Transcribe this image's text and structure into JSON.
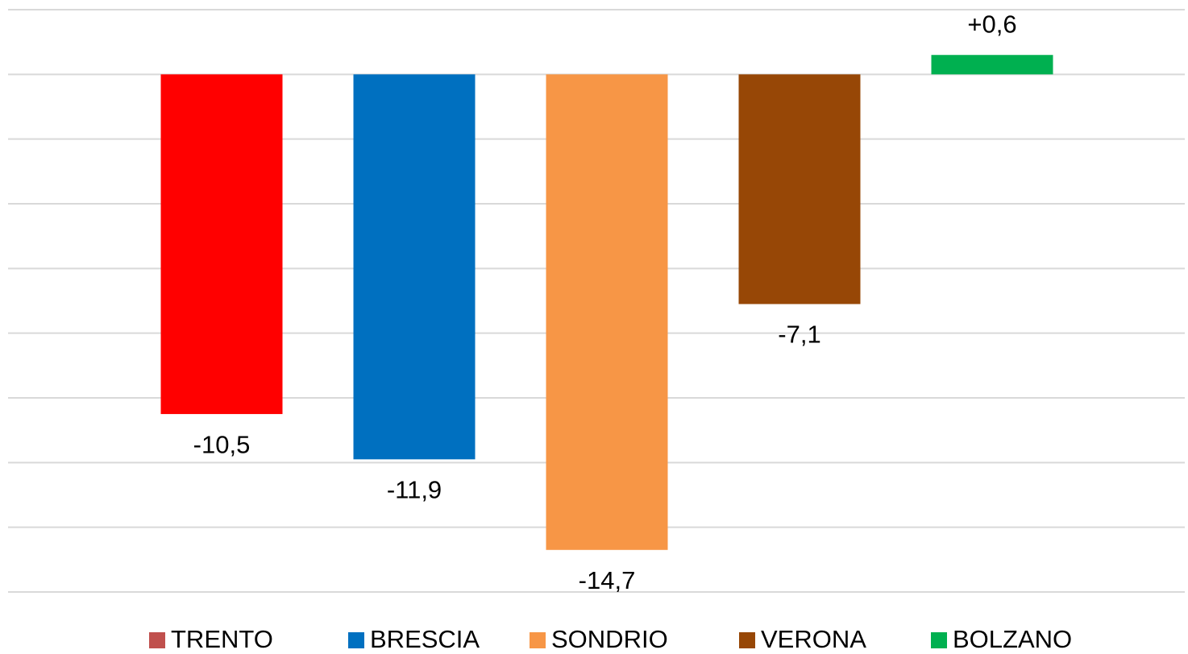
{
  "chart_data": {
    "type": "bar",
    "series": [
      {
        "name": "TRENTO",
        "color": "#ff0000",
        "legend_color": "#c0504d",
        "values": [
          -10.5
        ],
        "value_labels": [
          "-10,5"
        ]
      },
      {
        "name": "BRESCIA",
        "color": "#0070c0",
        "values": [
          -11.9
        ],
        "value_labels": [
          "-11,9"
        ]
      },
      {
        "name": "SONDRIO",
        "color": "#f79646",
        "values": [
          -14.7
        ],
        "value_labels": [
          "-14,7"
        ]
      },
      {
        "name": "VERONA",
        "color": "#974706",
        "values": [
          -7.1
        ],
        "value_labels": [
          "-7,1"
        ]
      },
      {
        "name": "BOLZANO",
        "color": "#00b050",
        "values": [
          0.6
        ],
        "value_labels": [
          "+0,6"
        ]
      }
    ],
    "ylim": [
      -16,
      2
    ],
    "yticks": [
      -16,
      -14,
      -12,
      -10,
      -8,
      -6,
      -4,
      -2,
      0,
      2
    ],
    "grid": true,
    "legend": "bottom"
  }
}
